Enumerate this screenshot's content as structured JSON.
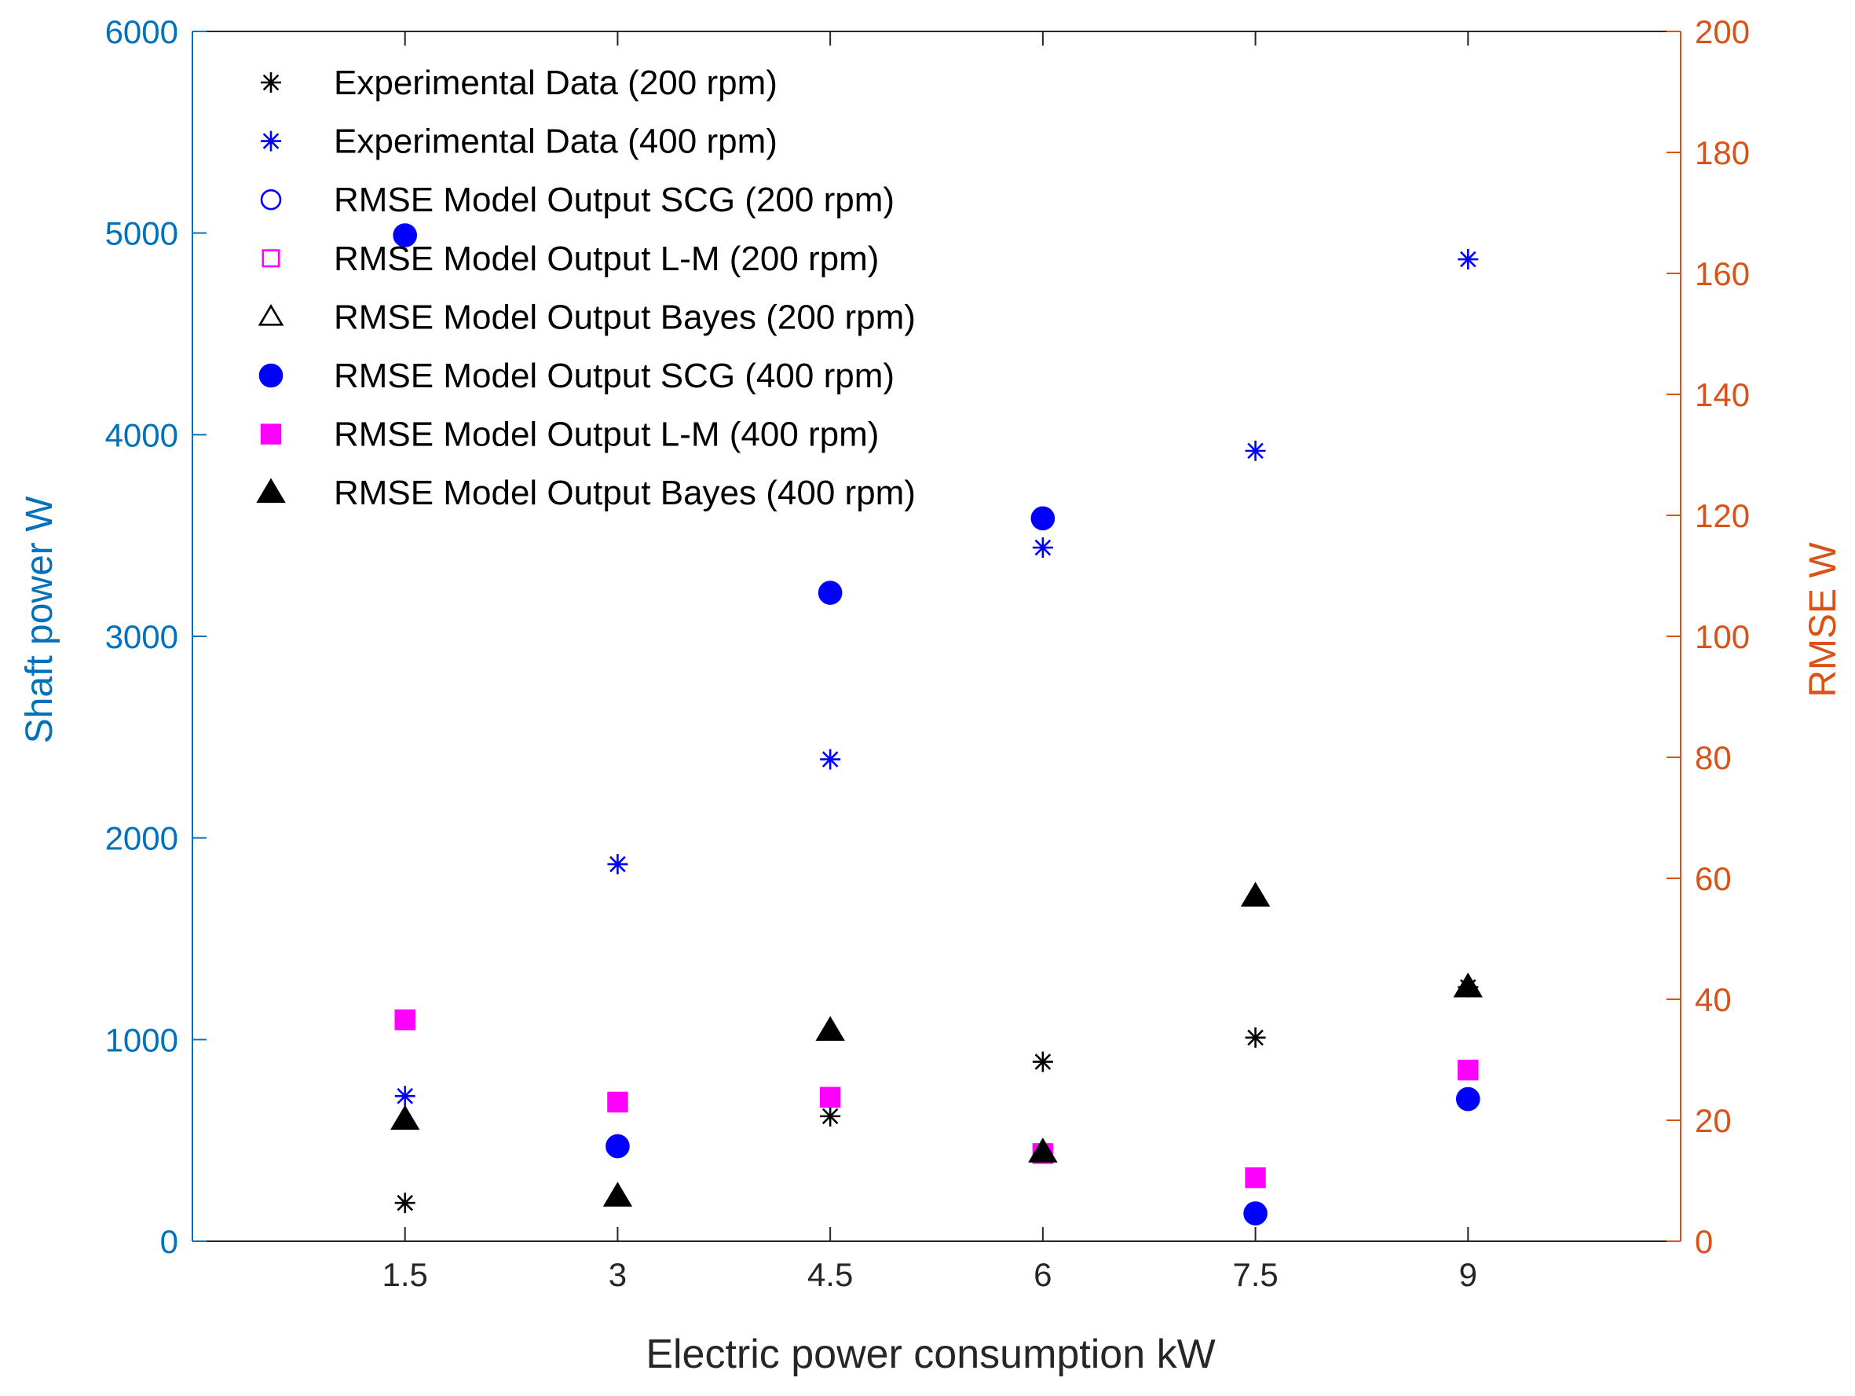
{
  "chart_data": {
    "type": "scatter",
    "title": "",
    "xlabel": "Electric power consumption  kW",
    "ylabel_left": "Shaft power W",
    "ylabel_right": "RMSE W",
    "x_categories": [
      "1.5",
      "3",
      "4.5",
      "6",
      "7.5",
      "9"
    ],
    "x_values": [
      1.5,
      3,
      4.5,
      6,
      7.5,
      9
    ],
    "xlim": [
      0,
      10.5
    ],
    "ylim_left": [
      0,
      6000
    ],
    "ylim_right": [
      0,
      200
    ],
    "yticks_left": [
      "0",
      "1000",
      "2000",
      "3000",
      "4000",
      "5000",
      "6000"
    ],
    "yticks_right": [
      "0",
      "20",
      "40",
      "60",
      "80",
      "100",
      "120",
      "140",
      "160",
      "180",
      "200"
    ],
    "grid": false,
    "legend_position": "top-left",
    "colors": {
      "left_axis": "#0072BD",
      "right_axis": "#D95319",
      "black": "#000000",
      "blue": "#0000FF",
      "magenta": "#FF00FF"
    },
    "series": [
      {
        "name": "Experimental Data (200 rpm)",
        "axis": "left",
        "marker": "asterisk",
        "color": "#000000",
        "filled": false,
        "x": [
          1.5,
          3,
          4.5,
          6,
          7.5,
          9
        ],
        "y": [
          190,
          480,
          620,
          890,
          1010,
          1260
        ]
      },
      {
        "name": "Experimental Data (400 rpm)",
        "axis": "left",
        "marker": "asterisk",
        "color": "#0000FF",
        "filled": false,
        "x": [
          1.5,
          3,
          4.5,
          6,
          7.5,
          9
        ],
        "y": [
          720,
          1870,
          2390,
          3440,
          3920,
          4870
        ]
      },
      {
        "name": "RMSE Model Output SCG (200 rpm)",
        "axis": "right",
        "marker": "circle",
        "color": "#0000FF",
        "filled": false,
        "x": [],
        "y": []
      },
      {
        "name": "RMSE Model Output L-M (200 rpm)",
        "axis": "right",
        "marker": "square",
        "color": "#FF00FF",
        "filled": false,
        "x": [],
        "y": []
      },
      {
        "name": "RMSE Model Output Bayes (200 rpm)",
        "axis": "right",
        "marker": "triangle",
        "color": "#000000",
        "filled": false,
        "x": [],
        "y": []
      },
      {
        "name": "RMSE Model Output SCG (400 rpm)",
        "axis": "right",
        "marker": "circle",
        "color": "#0000FF",
        "filled": true,
        "x": [
          1.5,
          3,
          4.5,
          6,
          7.5,
          9
        ],
        "y": [
          166.3,
          15.7,
          107.2,
          119.5,
          4.6,
          23.5
        ]
      },
      {
        "name": "RMSE Model Output L-M (400 rpm)",
        "axis": "right",
        "marker": "square",
        "color": "#FF00FF",
        "filled": true,
        "x": [
          1.5,
          3,
          4.5,
          6,
          7.5,
          9
        ],
        "y": [
          36.6,
          23.0,
          23.8,
          14.5,
          10.5,
          28.3
        ]
      },
      {
        "name": "RMSE Model Output Bayes (400 rpm)",
        "axis": "right",
        "marker": "triangle",
        "color": "#000000",
        "filled": true,
        "x": [
          1.5,
          3,
          4.5,
          6,
          7.5,
          9
        ],
        "y": [
          20.1,
          7.4,
          34.8,
          14.7,
          57.0,
          42.0
        ]
      }
    ]
  }
}
